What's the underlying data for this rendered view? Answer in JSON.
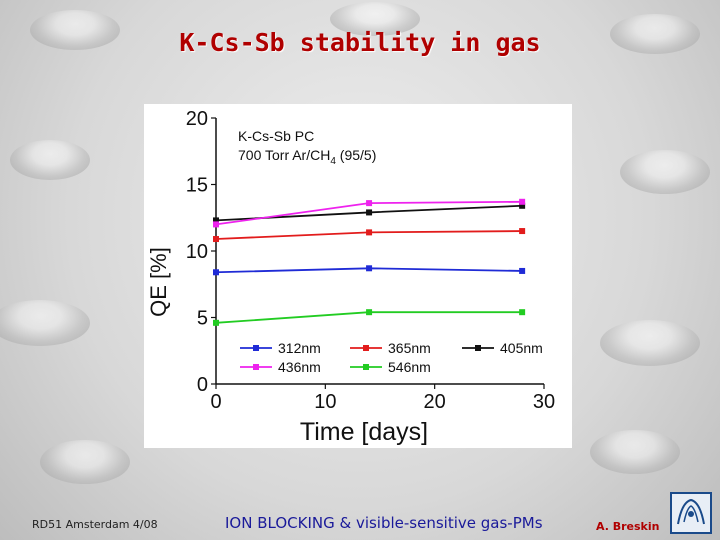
{
  "slide": {
    "title": "K-Cs-Sb stability in gas",
    "footer_left": "RD51 Amsterdam 4/08",
    "footer_center": "ION BLOCKING & visible-sensitive gas-PMs",
    "footer_right": "A. Breskin"
  },
  "chart_data": {
    "type": "line",
    "title": "",
    "annotation_line1": "K-Cs-Sb PC",
    "annotation_line2": "700 Torr Ar/CH",
    "annotation_sub": "4",
    "annotation_tail": " (95/5)",
    "xlabel": "Time [days]",
    "ylabel": "QE [%]",
    "xlim": [
      0,
      30
    ],
    "ylim": [
      0,
      20
    ],
    "xticks": [
      0,
      10,
      20,
      30
    ],
    "yticks": [
      0,
      5,
      10,
      15,
      20
    ],
    "grid": false,
    "legend_position": "bottom",
    "series": [
      {
        "name": "312nm",
        "color": "#1f2bd6",
        "x": [
          0,
          14,
          28
        ],
        "y": [
          8.4,
          8.7,
          8.5
        ]
      },
      {
        "name": "365nm",
        "color": "#e21c1c",
        "x": [
          0,
          14,
          28
        ],
        "y": [
          10.9,
          11.4,
          11.5
        ]
      },
      {
        "name": "405nm",
        "color": "#111111",
        "x": [
          0,
          14,
          28
        ],
        "y": [
          12.3,
          12.9,
          13.4
        ]
      },
      {
        "name": "436nm",
        "color": "#ee22ee",
        "x": [
          0,
          14,
          28
        ],
        "y": [
          12.0,
          13.6,
          13.7
        ]
      },
      {
        "name": "546nm",
        "color": "#22cc22",
        "x": [
          0,
          14,
          28
        ],
        "y": [
          4.6,
          5.4,
          5.4
        ]
      }
    ]
  }
}
